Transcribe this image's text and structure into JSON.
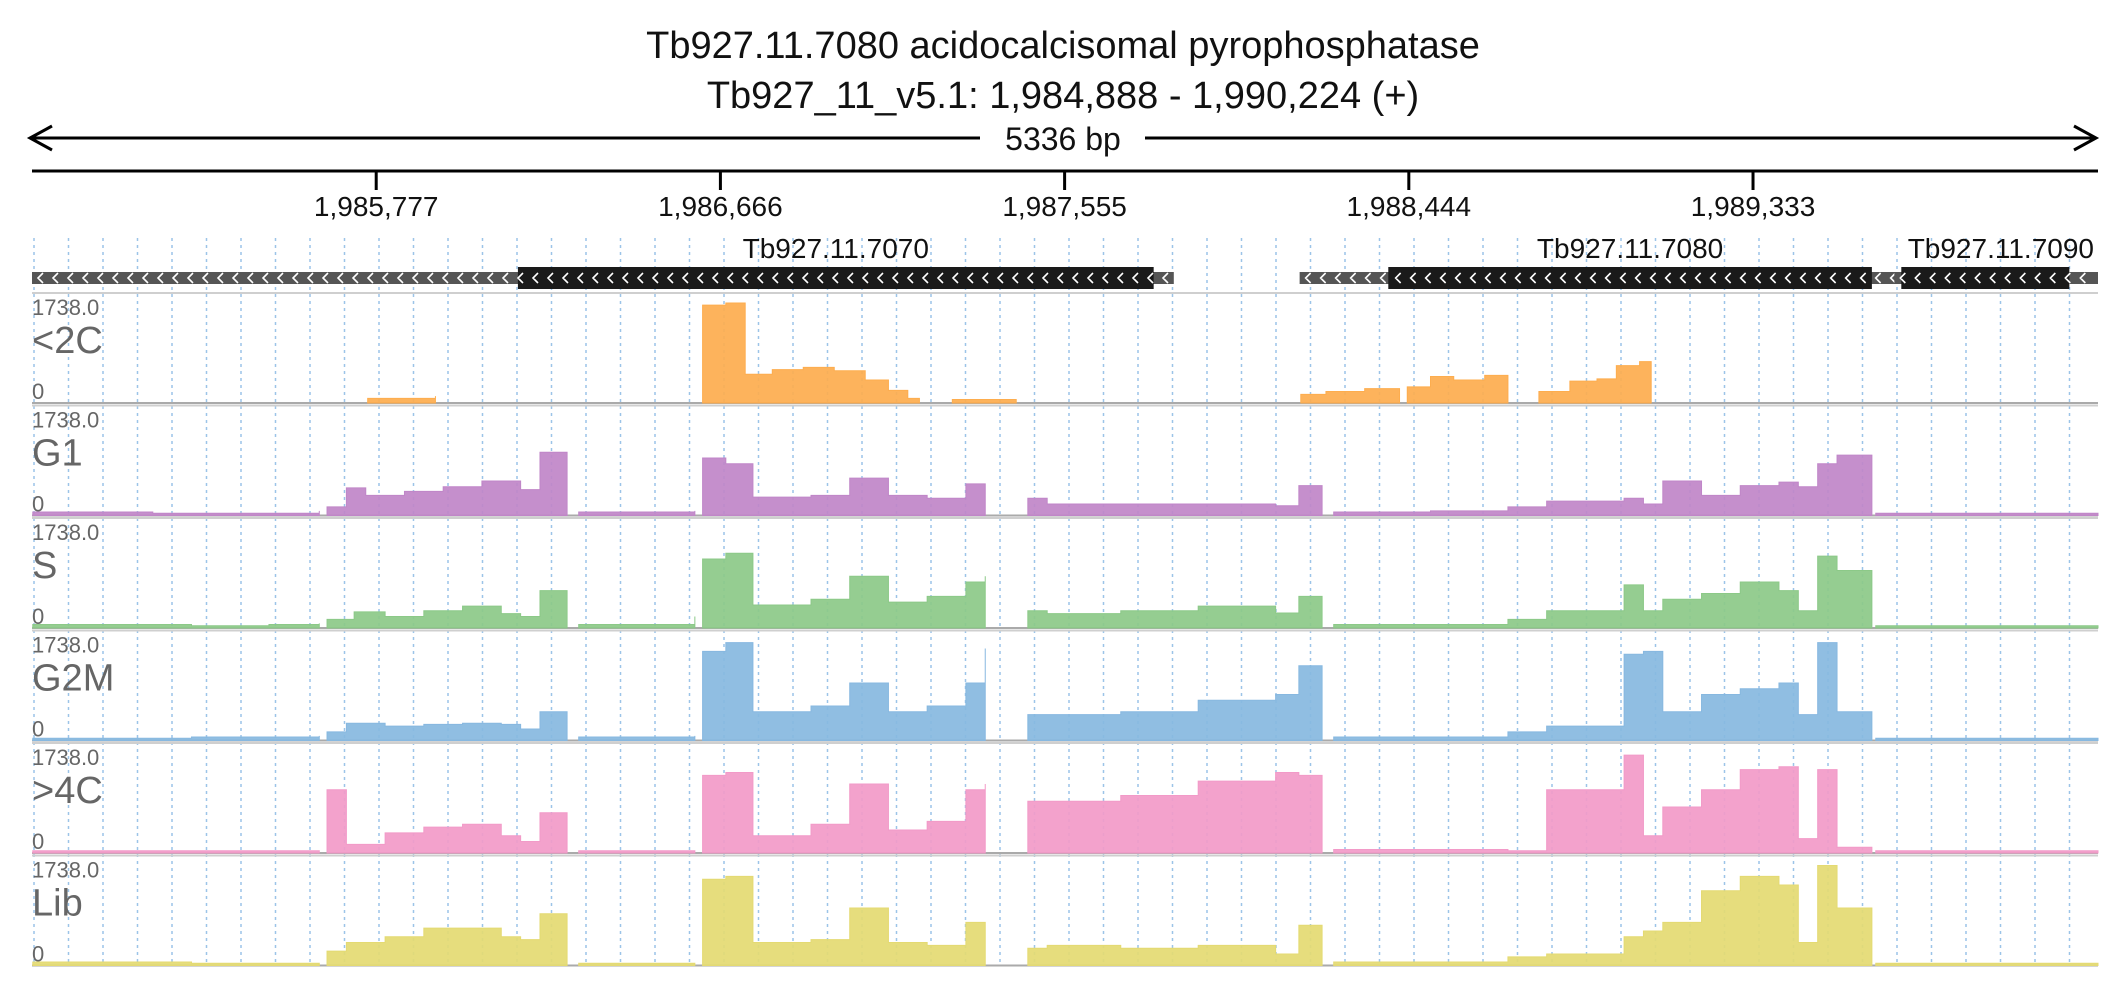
{
  "chart_data": {
    "type": "area",
    "title": "Tb927.11.7080  acidocalcisomal pyrophosphatase",
    "subtitle": "Tb927_11_v5.1: 1,984,888 - 1,990,224 (+)",
    "span_label": "5336 bp",
    "region": {
      "start": 1984888,
      "end": 1990224
    },
    "ticks": [
      {
        "pos": 1985777,
        "label": "1,985,777"
      },
      {
        "pos": 1986666,
        "label": "1,986,666"
      },
      {
        "pos": 1987555,
        "label": "1,987,555"
      },
      {
        "pos": 1988444,
        "label": "1,988,444"
      },
      {
        "pos": 1989333,
        "label": "1,989,333"
      }
    ],
    "grid": true,
    "genes": [
      {
        "name": "Tb927.11.7070",
        "start": 1984888,
        "end": 1987837,
        "cds_start": 1986143,
        "cds_end": 1987785,
        "strand": "-"
      },
      {
        "name": "Tb927.11.7080",
        "start": 1988162,
        "end": 1990224,
        "cds_start": 1988391,
        "cds_end": 1989640,
        "strand": "-"
      },
      {
        "name": "Tb927.11.7090",
        "start": 1989698,
        "end": 1990224,
        "cds_start": 1989716,
        "cds_end": 1990150,
        "strand": "-"
      }
    ],
    "y_max_label": "1738.0",
    "y_min_label": "0",
    "ylim": [
      0,
      1738
    ],
    "series": [
      {
        "name": "<2C",
        "color": "#FDAD4E",
        "segments": [
          {
            "x": [
              1985755,
              1985930
            ],
            "y": [
              80,
              120
            ]
          },
          {
            "x": [
              1986620,
              1986680,
              1986730,
              1986800,
              1986880,
              1986960,
              1987040,
              1987100,
              1987150,
              1987180
            ],
            "y": [
              1700,
              1750,
              500,
              580,
              620,
              560,
              400,
              220,
              80,
              60
            ]
          },
          {
            "x": [
              1987265,
              1987430
            ],
            "y": [
              60,
              60
            ]
          },
          {
            "x": [
              1988165,
              1988230,
              1988330,
              1988420
            ],
            "y": [
              150,
              200,
              250,
              130
            ]
          },
          {
            "x": [
              1988440,
              1988500,
              1988560,
              1988640,
              1988700
            ],
            "y": [
              280,
              460,
              400,
              480,
              300
            ]
          },
          {
            "x": [
              1988780,
              1988860,
              1988930,
              1988980,
              1989040,
              1989070
            ],
            "y": [
              200,
              380,
              420,
              650,
              720,
              600
            ]
          }
        ]
      },
      {
        "name": "G1",
        "color": "#C086C8",
        "segments": [
          {
            "x": [
              1984890,
              1985000,
              1985200,
              1985500,
              1985630
            ],
            "y": [
              60,
              60,
              40,
              40,
              80
            ]
          },
          {
            "x": [
              1985650,
              1985700,
              1985750,
              1985850,
              1985950,
              1986050,
              1986150,
              1986200,
              1986270
            ],
            "y": [
              150,
              480,
              350,
              420,
              500,
              600,
              450,
              1100,
              150
            ]
          },
          {
            "x": [
              1986300,
              1986500,
              1986600
            ],
            "y": [
              60,
              60,
              80
            ]
          },
          {
            "x": [
              1986620,
              1986680,
              1986750,
              1986900,
              1987000,
              1987100,
              1987200,
              1987300,
              1987350
            ],
            "y": [
              1000,
              900,
              320,
              350,
              650,
              350,
              300,
              550,
              150
            ]
          },
          {
            "x": [
              1987460,
              1987510,
              1987700,
              1987900,
              1988100,
              1988160,
              1988220
            ],
            "y": [
              300,
              200,
              200,
              200,
              170,
              520,
              60
            ]
          },
          {
            "x": [
              1988250,
              1988500,
              1988700,
              1988800,
              1989000,
              1989050,
              1989100,
              1989200,
              1989300,
              1989400,
              1989450,
              1989500,
              1989550,
              1989640
            ],
            "y": [
              60,
              80,
              150,
              250,
              300,
              200,
              600,
              350,
              520,
              580,
              500,
              900,
              1050,
              350
            ]
          },
          {
            "x": [
              1989650,
              1990224
            ],
            "y": [
              40,
              40
            ]
          }
        ]
      },
      {
        "name": "S",
        "color": "#8CC988",
        "segments": [
          {
            "x": [
              1984890,
              1985100,
              1985300,
              1985500,
              1985630
            ],
            "y": [
              60,
              60,
              40,
              60,
              80
            ]
          },
          {
            "x": [
              1985650,
              1985720,
              1985800,
              1985900,
              1986000,
              1986100,
              1986150,
              1986200,
              1986270
            ],
            "y": [
              150,
              280,
              200,
              300,
              380,
              250,
              200,
              650,
              150
            ]
          },
          {
            "x": [
              1986300,
              1986500,
              1986600
            ],
            "y": [
              60,
              60,
              200
            ]
          },
          {
            "x": [
              1986620,
              1986680,
              1986750,
              1986900,
              1987000,
              1987100,
              1987200,
              1987300,
              1987350
            ],
            "y": [
              1200,
              1300,
              400,
              500,
              900,
              450,
              550,
              800,
              900
            ]
          },
          {
            "x": [
              1987460,
              1987510,
              1987700,
              1987900,
              1988100,
              1988160,
              1988220
            ],
            "y": [
              300,
              250,
              300,
              380,
              260,
              550,
              60
            ]
          },
          {
            "x": [
              1988250,
              1988500,
              1988700,
              1988800,
              1989000,
              1989050,
              1989100,
              1989200,
              1989300,
              1989400,
              1989450,
              1989500,
              1989550,
              1989640
            ],
            "y": [
              60,
              60,
              150,
              300,
              750,
              300,
              500,
              600,
              800,
              650,
              300,
              1250,
              1000,
              300
            ]
          },
          {
            "x": [
              1989650,
              1990224
            ],
            "y": [
              40,
              40
            ]
          }
        ]
      },
      {
        "name": "G2M",
        "color": "#87B8E0",
        "segments": [
          {
            "x": [
              1984890,
              1985100,
              1985300,
              1985500,
              1985630
            ],
            "y": [
              40,
              40,
              60,
              60,
              80
            ]
          },
          {
            "x": [
              1985650,
              1985700,
              1985800,
              1985900,
              1986000,
              1986100,
              1986150,
              1986200,
              1986270
            ],
            "y": [
              150,
              300,
              250,
              280,
              300,
              280,
              200,
              500,
              150
            ]
          },
          {
            "x": [
              1986300,
              1986500,
              1986600
            ],
            "y": [
              60,
              60,
              80
            ]
          },
          {
            "x": [
              1986620,
              1986680,
              1986750,
              1986900,
              1987000,
              1987100,
              1987200,
              1987300,
              1987350
            ],
            "y": [
              1550,
              1700,
              500,
              600,
              1000,
              500,
              600,
              1000,
              1600
            ]
          },
          {
            "x": [
              1987460,
              1987510,
              1987700,
              1987900,
              1988100,
              1988160,
              1988220
            ],
            "y": [
              450,
              450,
              500,
              700,
              800,
              1300,
              60
            ]
          },
          {
            "x": [
              1988250,
              1988500,
              1988700,
              1988800,
              1989000,
              1989050,
              1989100,
              1989200,
              1989300,
              1989400,
              1989450,
              1989500,
              1989550,
              1989640
            ],
            "y": [
              60,
              60,
              150,
              250,
              1500,
              1550,
              500,
              800,
              900,
              1000,
              450,
              1700,
              500,
              300
            ]
          },
          {
            "x": [
              1989650,
              1990224
            ],
            "y": [
              40,
              40
            ]
          }
        ]
      },
      {
        "name": ">4C",
        "color": "#F29AC8",
        "segments": [
          {
            "x": [
              1984890,
              1985100,
              1985300,
              1985500,
              1985630
            ],
            "y": [
              40,
              40,
              40,
              40,
              40
            ]
          },
          {
            "x": [
              1985650,
              1985700,
              1985800,
              1985900,
              1986000,
              1986100,
              1986150,
              1986200,
              1986270
            ],
            "y": [
              1100,
              150,
              350,
              450,
              500,
              300,
              200,
              700,
              150
            ]
          },
          {
            "x": [
              1986300,
              1986500,
              1986600
            ],
            "y": [
              40,
              40,
              40
            ]
          },
          {
            "x": [
              1986620,
              1986680,
              1986750,
              1986900,
              1987000,
              1987100,
              1987200,
              1987300,
              1987350
            ],
            "y": [
              1350,
              1400,
              300,
              500,
              1200,
              400,
              550,
              1100,
              1200
            ]
          },
          {
            "x": [
              1987460,
              1987510,
              1987700,
              1987900,
              1988100,
              1988160,
              1988220
            ],
            "y": [
              900,
              900,
              1000,
              1250,
              1400,
              1350,
              60
            ]
          },
          {
            "x": [
              1988250,
              1988500,
              1988700,
              1988800,
              1989000,
              1989050,
              1989100,
              1989200,
              1989300,
              1989400,
              1989450,
              1989500,
              1989550,
              1989640
            ],
            "y": [
              60,
              60,
              40,
              1100,
              1700,
              300,
              800,
              1100,
              1450,
              1500,
              250,
              1450,
              100,
              100
            ]
          },
          {
            "x": [
              1989650,
              1990224
            ],
            "y": [
              40,
              40
            ]
          }
        ]
      },
      {
        "name": "Lib",
        "color": "#E4DA72",
        "segments": [
          {
            "x": [
              1984890,
              1985100,
              1985300,
              1985500,
              1985630
            ],
            "y": [
              60,
              60,
              40,
              40,
              40
            ]
          },
          {
            "x": [
              1985650,
              1985700,
              1985800,
              1985900,
              1986000,
              1986100,
              1986150,
              1986200,
              1986270
            ],
            "y": [
              250,
              400,
              500,
              650,
              650,
              500,
              450,
              900,
              200
            ]
          },
          {
            "x": [
              1986300,
              1986500,
              1986600
            ],
            "y": [
              40,
              40,
              40
            ]
          },
          {
            "x": [
              1986620,
              1986680,
              1986750,
              1986900,
              1987000,
              1987100,
              1987200,
              1987300,
              1987350
            ],
            "y": [
              1500,
              1550,
              400,
              450,
              1000,
              400,
              350,
              750,
              750
            ]
          },
          {
            "x": [
              1987460,
              1987510,
              1987700,
              1987900,
              1988100,
              1988160,
              1988220
            ],
            "y": [
              300,
              350,
              300,
              350,
              200,
              700,
              60
            ]
          },
          {
            "x": [
              1988250,
              1988500,
              1988700,
              1988800,
              1989000,
              1989050,
              1989100,
              1989200,
              1989300,
              1989400,
              1989450,
              1989500,
              1989550,
              1989640
            ],
            "y": [
              60,
              60,
              150,
              200,
              500,
              600,
              750,
              1300,
              1550,
              1400,
              400,
              1800,
              1000,
              60
            ]
          },
          {
            "x": [
              1989650,
              1990224
            ],
            "y": [
              40,
              40
            ]
          }
        ]
      }
    ]
  }
}
